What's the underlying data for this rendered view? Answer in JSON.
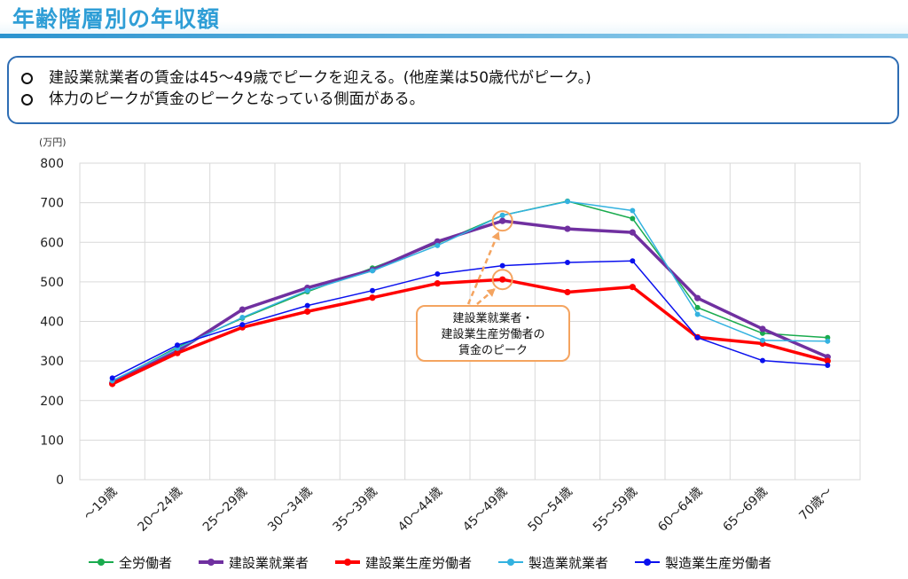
{
  "page_title": "年齢階層別の年収額",
  "notes": [
    "建設業就業者の賃金は45～49歳でピークを迎える。(他産業は50歳代がピーク。)",
    "体力のピークが賃金のピークとなっている側面がある。"
  ],
  "chart_data": {
    "type": "line",
    "title": "",
    "xlabel": "",
    "ylabel": "(万円)",
    "ylim": [
      0,
      800
    ],
    "yticks": [
      0,
      100,
      200,
      300,
      400,
      500,
      600,
      700,
      800
    ],
    "grid": true,
    "legend_position": "bottom",
    "categories": [
      "～19歳",
      "20～24歳",
      "25～29歳",
      "30～34歳",
      "35～39歳",
      "40～44歳",
      "45～49歳",
      "50～54歳",
      "55～59歳",
      "60～64歳",
      "65～69歳",
      "70歳～"
    ],
    "series": [
      {
        "name": "全労働者",
        "color": "#1aab4e",
        "width": 1.5,
        "values": [
          248,
          335,
          408,
          475,
          535,
          597,
          668,
          704,
          660,
          435,
          370,
          359
        ]
      },
      {
        "name": "建設業就業者",
        "color": "#7030a0",
        "width": 3.5,
        "values": [
          244,
          325,
          430,
          485,
          530,
          602,
          654,
          634,
          625,
          459,
          381,
          310
        ]
      },
      {
        "name": "建設業生産労働者",
        "color": "#ff0000",
        "width": 3.5,
        "values": [
          242,
          320,
          385,
          425,
          460,
          496,
          506,
          474,
          487,
          360,
          344,
          300
        ]
      },
      {
        "name": "製造業就業者",
        "color": "#33b2e0",
        "width": 1.5,
        "values": [
          250,
          332,
          410,
          478,
          528,
          592,
          668,
          703,
          680,
          418,
          352,
          350
        ]
      },
      {
        "name": "製造業生産労働者",
        "color": "#0a10ee",
        "width": 1.5,
        "values": [
          257,
          340,
          392,
          440,
          478,
          520,
          541,
          549,
          553,
          359,
          301,
          289
        ]
      }
    ],
    "annotation": {
      "lines": [
        "建設業就業者・",
        "建設業生産労働者の",
        "賃金のピーク"
      ],
      "color": "#f4a460"
    }
  }
}
